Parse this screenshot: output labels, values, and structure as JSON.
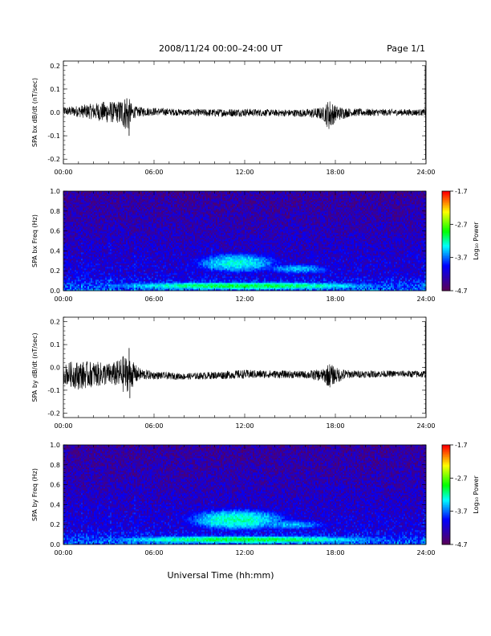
{
  "header": {
    "title": "2008/11/24  00:00–24:00 UT",
    "page_label": "Page 1/1"
  },
  "xlabel": "Universal Time (hh:mm)",
  "chart_data": [
    {
      "type": "line",
      "ylabel": "SPA bx dB/dt (nT/sec)",
      "xlim": [
        0,
        24
      ],
      "ylim": [
        -0.22,
        0.22
      ],
      "x_ticks": [
        "00:00",
        "06:00",
        "12:00",
        "18:00",
        "24:00"
      ],
      "y_ticks": [
        "-0.2",
        "-0.1",
        "0.0",
        "0.1",
        "0.2"
      ],
      "y_tick_values": [
        -0.2,
        -0.1,
        0.0,
        0.1,
        0.2
      ],
      "envelope": {
        "x": [
          0,
          1,
          2,
          3,
          3.5,
          4,
          4.3,
          4.6,
          5,
          6,
          8,
          10,
          12,
          14,
          16,
          17.2,
          17.6,
          18,
          19,
          22,
          23.8,
          23.95
        ],
        "amp": [
          0.012,
          0.018,
          0.025,
          0.035,
          0.03,
          0.05,
          0.055,
          0.02,
          0.015,
          0.012,
          0.01,
          0.012,
          0.012,
          0.01,
          0.012,
          0.02,
          0.05,
          0.025,
          0.012,
          0.01,
          0.01,
          0.012
        ],
        "offset": [
          0.005,
          0.005,
          0.004,
          0.002,
          0.0,
          0.0,
          -0.01,
          0.0,
          0.003,
          0.004,
          0.0,
          -0.002,
          0.0,
          -0.002,
          -0.003,
          -0.005,
          -0.01,
          -0.005,
          0.0,
          0.0,
          0.0,
          0.0
        ]
      },
      "spikes": [
        {
          "x": 4.35,
          "y": -0.1
        },
        {
          "x": 4.2,
          "y": 0.06
        },
        {
          "x": 23.95,
          "y": 0.2
        },
        {
          "x": 23.97,
          "y": -0.2
        }
      ]
    },
    {
      "type": "heatmap",
      "ylabel": "SPA bx Freq (Hz)",
      "xlim": [
        0,
        24
      ],
      "ylim": [
        0.0,
        1.0
      ],
      "x_ticks": [
        "00:00",
        "06:00",
        "12:00",
        "18:00",
        "24:00"
      ],
      "y_ticks": [
        "0.0",
        "0.2",
        "0.4",
        "0.6",
        "0.8",
        "1.0"
      ],
      "y_tick_values": [
        0.0,
        0.2,
        0.4,
        0.6,
        0.8,
        1.0
      ],
      "colorbar": {
        "label": "Log₁₀ Power",
        "range": [
          -4.7,
          -1.7
        ],
        "ticks": [
          "-1.7",
          "-2.7",
          "-3.7",
          "-4.7"
        ],
        "tick_values": [
          -1.7,
          -2.7,
          -3.7,
          -4.7
        ]
      },
      "features": [
        {
          "t": 11.5,
          "f": 0.28,
          "dt": 4.0,
          "df": 0.14,
          "peak": -3.3
        },
        {
          "t": 15.5,
          "f": 0.22,
          "dt": 3.5,
          "df": 0.08,
          "peak": -3.5
        },
        {
          "t": 12.0,
          "f": 0.05,
          "dt": 12.0,
          "df": 0.05,
          "peak": -3.0
        }
      ]
    },
    {
      "type": "line",
      "ylabel": "SPA by dB/dt (nT/sec)",
      "xlim": [
        0,
        24
      ],
      "ylim": [
        -0.22,
        0.22
      ],
      "x_ticks": [
        "00:00",
        "06:00",
        "12:00",
        "18:00",
        "24:00"
      ],
      "y_ticks": [
        "-0.2",
        "-0.1",
        "0.0",
        "0.1",
        "0.2"
      ],
      "y_tick_values": [
        -0.2,
        -0.1,
        0.0,
        0.1,
        0.2
      ],
      "envelope": {
        "x": [
          0,
          0.5,
          1,
          2,
          3,
          3.5,
          4,
          4.4,
          5,
          6,
          8,
          10,
          12,
          14,
          16,
          17.2,
          17.6,
          18,
          19,
          22,
          23.8,
          23.95
        ],
        "amp": [
          0.03,
          0.04,
          0.045,
          0.04,
          0.035,
          0.04,
          0.06,
          0.05,
          0.02,
          0.012,
          0.01,
          0.012,
          0.014,
          0.012,
          0.012,
          0.02,
          0.04,
          0.025,
          0.012,
          0.01,
          0.012,
          0.012
        ],
        "offset": [
          -0.03,
          -0.03,
          -0.035,
          -0.03,
          -0.03,
          -0.03,
          -0.03,
          -0.03,
          -0.03,
          -0.035,
          -0.04,
          -0.035,
          -0.03,
          -0.03,
          -0.032,
          -0.035,
          -0.035,
          -0.035,
          -0.03,
          -0.028,
          -0.03,
          -0.03
        ]
      },
      "spikes": [
        {
          "x": 4.35,
          "y": 0.085
        },
        {
          "x": 4.4,
          "y": -0.135
        },
        {
          "x": 23.96,
          "y": 0.2
        },
        {
          "x": 23.98,
          "y": -0.2
        }
      ]
    },
    {
      "type": "heatmap",
      "ylabel": "SPA by Freq (Hz)",
      "xlim": [
        0,
        24
      ],
      "ylim": [
        0.0,
        1.0
      ],
      "x_ticks": [
        "00:00",
        "06:00",
        "12:00",
        "18:00",
        "24:00"
      ],
      "y_ticks": [
        "0.0",
        "0.2",
        "0.4",
        "0.6",
        "0.8",
        "1.0"
      ],
      "y_tick_values": [
        0.0,
        0.2,
        0.4,
        0.6,
        0.8,
        1.0
      ],
      "colorbar": {
        "label": "Log₁₀ Power",
        "range": [
          -4.7,
          -1.7
        ],
        "ticks": [
          "-1.7",
          "-2.7",
          "-3.7",
          "-4.7"
        ],
        "tick_values": [
          -1.7,
          -2.7,
          -3.7,
          -4.7
        ]
      },
      "features": [
        {
          "t": 11.5,
          "f": 0.25,
          "dt": 4.5,
          "df": 0.15,
          "peak": -3.2
        },
        {
          "t": 15.0,
          "f": 0.2,
          "dt": 4.0,
          "df": 0.08,
          "peak": -3.5
        },
        {
          "t": 12.0,
          "f": 0.05,
          "dt": 12.0,
          "df": 0.05,
          "peak": -3.0
        }
      ]
    }
  ]
}
